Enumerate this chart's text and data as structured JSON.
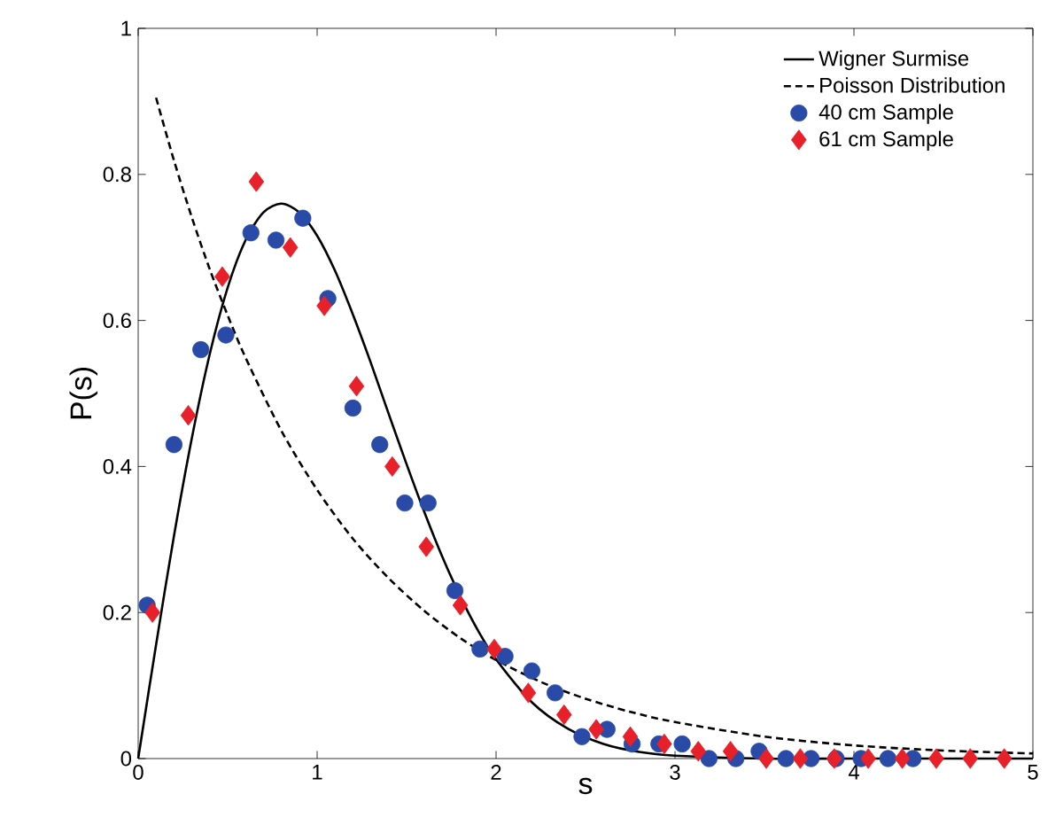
{
  "chart_data": {
    "type": "scatter",
    "xlabel": "s",
    "ylabel": "P(s)",
    "xlim": [
      0,
      5
    ],
    "ylim": [
      0,
      1
    ],
    "xticks": [
      0,
      1,
      2,
      3,
      4,
      5
    ],
    "yticks": [
      0,
      0.2,
      0.4,
      0.6,
      0.8,
      1
    ],
    "legend": "top right",
    "grid": false,
    "series": [
      {
        "name": "Wigner Surmise",
        "type": "line",
        "line_style": "solid",
        "marker": "none",
        "color": "#000000",
        "x": [
          0,
          0.1,
          0.2,
          0.3,
          0.4,
          0.5,
          0.6,
          0.7,
          0.8,
          0.9,
          1.0,
          1.1,
          1.2,
          1.3,
          1.4,
          1.5,
          1.6,
          1.7,
          1.8,
          1.9,
          2.0,
          2.2,
          2.4,
          2.6,
          2.8,
          3.0,
          3.5,
          4.0,
          5.0
        ],
        "values": [
          0,
          0.156,
          0.305,
          0.439,
          0.554,
          0.645,
          0.71,
          0.748,
          0.76,
          0.748,
          0.716,
          0.668,
          0.608,
          0.542,
          0.472,
          0.403,
          0.337,
          0.276,
          0.222,
          0.175,
          0.136,
          0.077,
          0.041,
          0.02,
          0.009,
          0.004,
          0,
          0,
          0
        ]
      },
      {
        "name": "Poisson Distribution",
        "type": "line",
        "line_style": "dashed",
        "marker": "none",
        "color": "#000000",
        "x": [
          0.1,
          0.2,
          0.3,
          0.4,
          0.5,
          0.6,
          0.8,
          1.0,
          1.2,
          1.4,
          1.6,
          1.8,
          2.0,
          2.25,
          2.5,
          2.75,
          3.0,
          3.5,
          4.0,
          4.5,
          5.0
        ],
        "values": [
          0.905,
          0.819,
          0.741,
          0.67,
          0.607,
          0.549,
          0.449,
          0.368,
          0.301,
          0.247,
          0.202,
          0.165,
          0.135,
          0.105,
          0.082,
          0.064,
          0.05,
          0.03,
          0.018,
          0.011,
          0.007
        ]
      },
      {
        "name": "40 cm Sample",
        "marker": "circle",
        "color": "#2a4aa8",
        "x": [
          0.05,
          0.2,
          0.35,
          0.49,
          0.63,
          0.77,
          0.92,
          1.06,
          1.2,
          1.35,
          1.49,
          1.62,
          1.77,
          1.91,
          2.05,
          2.2,
          2.33,
          2.48,
          2.62,
          2.76,
          2.91,
          3.04,
          3.19,
          3.34,
          3.47,
          3.62,
          3.76,
          3.9,
          4.04,
          4.19,
          4.33
        ],
        "values": [
          0.21,
          0.43,
          0.56,
          0.58,
          0.72,
          0.71,
          0.74,
          0.63,
          0.48,
          0.43,
          0.35,
          0.35,
          0.23,
          0.15,
          0.14,
          0.12,
          0.09,
          0.03,
          0.04,
          0.02,
          0.02,
          0.02,
          0.0,
          0.0,
          0.01,
          0.0,
          0.0,
          0.0,
          0.0,
          0.0,
          0.0
        ]
      },
      {
        "name": "61 cm Sample",
        "marker": "diamond",
        "color": "#e8202a",
        "x": [
          0.08,
          0.28,
          0.47,
          0.66,
          0.85,
          1.04,
          1.22,
          1.42,
          1.61,
          1.8,
          1.99,
          2.18,
          2.38,
          2.56,
          2.75,
          2.94,
          3.13,
          3.31,
          3.51,
          3.7,
          3.89,
          4.08,
          4.27,
          4.46,
          4.65,
          4.84
        ],
        "values": [
          0.2,
          0.47,
          0.66,
          0.79,
          0.7,
          0.62,
          0.51,
          0.4,
          0.29,
          0.21,
          0.15,
          0.09,
          0.06,
          0.04,
          0.03,
          0.02,
          0.01,
          0.01,
          0.0,
          0.0,
          0.0,
          0.0,
          0.0,
          0.0,
          0.0,
          0.0
        ]
      }
    ]
  }
}
